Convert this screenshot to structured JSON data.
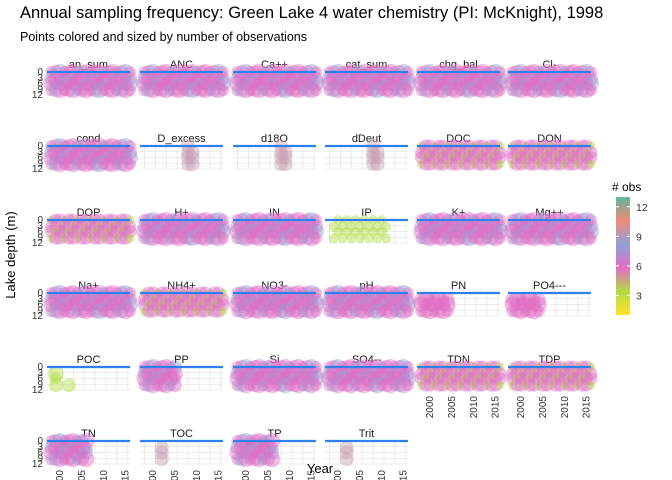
{
  "chart_data": {
    "type": "scatter",
    "title": "Annual sampling frequency: Green Lake 4 water chemistry (PI: McKnight), 1998",
    "subtitle": "Points colored and sized by number of observations",
    "xlabel": "Year",
    "ylabel": "Lake depth (m)",
    "x_ticks": [
      2000,
      2005,
      2010,
      2015
    ],
    "y_ticks": [
      0,
      3,
      6,
      9,
      12
    ],
    "xlim": [
      1997,
      2016
    ],
    "ylim": [
      12,
      0
    ],
    "grid": true,
    "legend": {
      "title": "# obs",
      "position": "right",
      "ticks": [
        3,
        6,
        9,
        12
      ],
      "range": [
        1,
        13
      ],
      "colors": [
        "#FFE12A",
        "#B3DB40",
        "#E16EC6",
        "#8FA2D6",
        "#F08A78",
        "#5FB89A"
      ]
    },
    "colors": {
      "panel_grid": "#dcdcdc",
      "panel_border": "#2f80ed",
      "strip_text": "#1a1a1a"
    },
    "panels": [
      {
        "label": "an_sum",
        "pattern": "full"
      },
      {
        "label": "ANC",
        "pattern": "full"
      },
      {
        "label": "Ca++",
        "pattern": "full"
      },
      {
        "label": "cat_sum",
        "pattern": "full"
      },
      {
        "label": "chg_bal",
        "pattern": "full"
      },
      {
        "label": "Cl-",
        "pattern": "full"
      },
      {
        "label": "cond",
        "pattern": "full"
      },
      {
        "label": "D_excess",
        "pattern": "iso"
      },
      {
        "label": "d18O",
        "pattern": "iso"
      },
      {
        "label": "dDeut",
        "pattern": "iso"
      },
      {
        "label": "DOC",
        "pattern": "mixed"
      },
      {
        "label": "DON",
        "pattern": "mixed"
      },
      {
        "label": "DOP",
        "pattern": "mixed"
      },
      {
        "label": "H+",
        "pattern": "full"
      },
      {
        "label": "IN",
        "pattern": "full"
      },
      {
        "label": "IP",
        "pattern": "sparse"
      },
      {
        "label": "K+",
        "pattern": "full"
      },
      {
        "label": "Mg++",
        "pattern": "full"
      },
      {
        "label": "Na+",
        "pattern": "full"
      },
      {
        "label": "NH4+",
        "pattern": "mixed"
      },
      {
        "label": "NO3-",
        "pattern": "full"
      },
      {
        "label": "pH",
        "pattern": "full"
      },
      {
        "label": "PN",
        "pattern": "partial"
      },
      {
        "label": "PO4---",
        "pattern": "partial"
      },
      {
        "label": "POC",
        "pattern": "early"
      },
      {
        "label": "PP",
        "pattern": "early2"
      },
      {
        "label": "Si",
        "pattern": "full"
      },
      {
        "label": "SO4--",
        "pattern": "full"
      },
      {
        "label": "TDN",
        "pattern": "mixed"
      },
      {
        "label": "TDP",
        "pattern": "mixed"
      },
      {
        "label": "TN",
        "pattern": "early3"
      },
      {
        "label": "TOC",
        "pattern": "toc"
      },
      {
        "label": "TP",
        "pattern": "early3"
      },
      {
        "label": "Trit",
        "pattern": "toc"
      }
    ]
  }
}
